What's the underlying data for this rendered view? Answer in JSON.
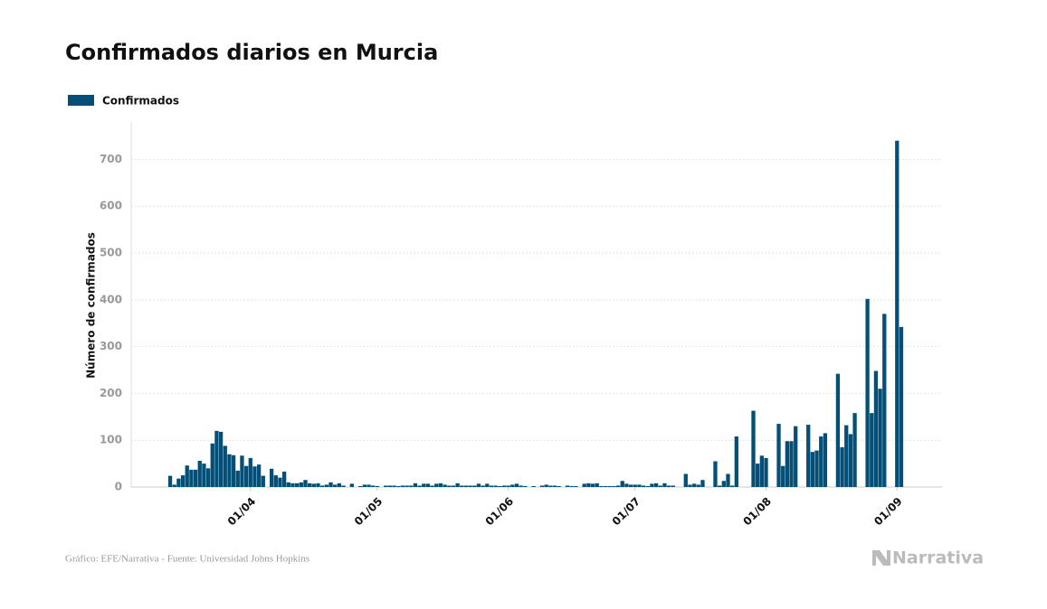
{
  "chart_data": {
    "type": "bar",
    "title": "Confirmados diarios en Murcia",
    "y_label": "Número de confirmados",
    "source": "Gráfico: EFE/Narrativa - Fuente: Universidad Johns Hopkins",
    "brand": "Narrativa",
    "series": [
      {
        "name": "Confirmados",
        "color": "#034f78",
        "values": [
          24,
          5,
          18,
          25,
          46,
          37,
          37,
          56,
          50,
          40,
          93,
          120,
          118,
          88,
          70,
          68,
          35,
          67,
          45,
          62,
          44,
          48,
          24,
          0,
          39,
          25,
          20,
          33,
          10,
          8,
          8,
          10,
          15,
          8,
          7,
          8,
          3,
          5,
          10,
          5,
          8,
          3,
          0,
          7,
          0,
          2,
          5,
          5,
          3,
          2,
          0,
          3,
          3,
          3,
          2,
          3,
          3,
          3,
          8,
          3,
          7,
          7,
          3,
          7,
          8,
          5,
          3,
          3,
          8,
          3,
          3,
          3,
          3,
          7,
          3,
          7,
          3,
          3,
          2,
          3,
          3,
          5,
          7,
          3,
          2,
          0,
          2,
          0,
          3,
          5,
          3,
          3,
          2,
          0,
          3,
          2,
          2,
          0,
          7,
          8,
          7,
          8,
          2,
          2,
          2,
          2,
          3,
          13,
          7,
          5,
          5,
          5,
          3,
          2,
          7,
          8,
          3,
          8,
          3,
          3,
          0,
          0,
          28,
          5,
          7,
          5,
          15,
          0,
          0,
          55,
          3,
          13,
          28,
          3,
          108,
          0,
          0,
          0,
          163,
          50,
          67,
          62,
          0,
          0,
          135,
          45,
          98,
          98,
          130,
          0,
          0,
          133,
          75,
          78,
          108,
          115,
          0,
          0,
          242,
          85,
          132,
          113,
          158,
          0,
          0,
          402,
          158,
          248,
          210,
          370,
          0,
          0,
          740,
          342
        ]
      }
    ],
    "categories": [
      null,
      null,
      null,
      null,
      null,
      null,
      null,
      null,
      null,
      null,
      null,
      null,
      null,
      null,
      null,
      null,
      null,
      null,
      null,
      "01/04",
      null,
      null,
      null,
      null,
      null,
      null,
      null,
      null,
      null,
      null,
      null,
      null,
      null,
      null,
      null,
      null,
      null,
      null,
      null,
      null,
      null,
      null,
      null,
      null,
      null,
      null,
      null,
      null,
      null,
      "01/05",
      null,
      null,
      null,
      null,
      null,
      null,
      null,
      null,
      null,
      null,
      null,
      null,
      null,
      null,
      null,
      null,
      null,
      null,
      null,
      null,
      null,
      null,
      null,
      null,
      null,
      null,
      null,
      null,
      null,
      null,
      "01/06",
      null,
      null,
      null,
      null,
      null,
      null,
      null,
      null,
      null,
      null,
      null,
      null,
      null,
      null,
      null,
      null,
      null,
      null,
      null,
      null,
      null,
      null,
      null,
      null,
      null,
      null,
      null,
      null,
      null,
      "01/07",
      null,
      null,
      null,
      null,
      null,
      null,
      null,
      null,
      null,
      null,
      null,
      null,
      null,
      null,
      null,
      null,
      null,
      null,
      null,
      null,
      null,
      null,
      null,
      null,
      null,
      null,
      null,
      null,
      null,
      null,
      "01/08",
      null,
      null,
      null,
      null,
      null,
      null,
      null,
      null,
      null,
      null,
      null,
      null,
      null,
      null,
      null,
      null,
      null,
      null,
      null,
      null,
      null,
      null,
      null,
      null,
      null,
      null,
      null,
      null,
      null,
      null,
      "01/09",
      null
    ],
    "ylim": [
      0,
      780
    ],
    "yticks": [
      0,
      100,
      200,
      300,
      400,
      500,
      600,
      700
    ],
    "grid": true,
    "legend": "top-left"
  }
}
